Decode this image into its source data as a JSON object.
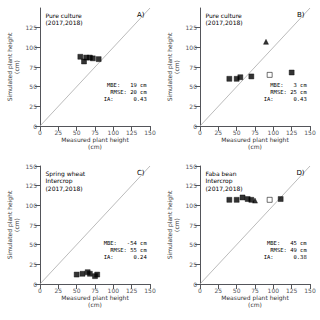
{
  "chart_data": [
    {
      "type": "scatter",
      "title": "Pure culture\n(2017,2018)",
      "annotations": [
        "A)",
        "MBE:   19 cm\nRMSE: 20 cm\nIA:      0.43"
      ],
      "xlabel": "Measured plant height\n(cm)",
      "ylabel": "Simulated plant height\n(cm)",
      "xlim": [
        0,
        150
      ],
      "ylim": [
        0,
        150
      ],
      "xticks": [
        0,
        25,
        50,
        75,
        100,
        125,
        150
      ],
      "yticks": [
        0,
        25,
        50,
        75,
        100,
        125
      ],
      "grid": false,
      "series": [
        {
          "type": "line",
          "color": "#aaaaaa",
          "x": [
            0,
            150
          ],
          "values": [
            0,
            150
          ]
        },
        {
          "type": "scatter",
          "marker": "square",
          "color": "black",
          "x": [
            55,
            60,
            63,
            68,
            72,
            80
          ],
          "values": [
            88,
            82,
            87,
            87,
            86,
            85
          ]
        }
      ]
    },
    {
      "type": "scatter",
      "title": "Pure culture\n(2017,2018)",
      "annotations": [
        "B)",
        "MBE:   3 cm\nRMSE: 25 cm\nIA:      0.43"
      ],
      "xlabel": "Measured plant height\n(cm)",
      "ylabel": "Simulated plant height\n(cm)",
      "xlim": [
        0,
        150
      ],
      "ylim": [
        0,
        150
      ],
      "xticks": [
        0,
        25,
        50,
        75,
        100,
        125,
        150
      ],
      "yticks": [
        0,
        25,
        50,
        75,
        100,
        125
      ],
      "grid": false,
      "series": [
        {
          "type": "line",
          "color": "#aaaaaa",
          "x": [
            0,
            150
          ],
          "values": [
            0,
            150
          ]
        },
        {
          "type": "scatter",
          "marker": "square",
          "color": "black",
          "x": [
            40,
            50,
            55,
            70,
            125
          ],
          "values": [
            60,
            60,
            62,
            63,
            68
          ]
        },
        {
          "type": "scatter",
          "marker": "open_square",
          "color": "black",
          "x": [
            95
          ],
          "values": [
            65
          ]
        },
        {
          "type": "scatter",
          "marker": "triangle",
          "color": "black",
          "x": [
            90
          ],
          "values": [
            107
          ]
        }
      ]
    },
    {
      "type": "scatter",
      "title": "Spring wheat\nIntercrop\n(2017,2018)",
      "annotations": [
        "C)",
        "MBE:   -54 cm\nRMSE: 55 cm\nIA:      0.24"
      ],
      "xlabel": "Measured plant height\n(cm)",
      "ylabel": "Simulated plant height\n(cm)",
      "xlim": [
        0,
        150
      ],
      "ylim": [
        0,
        150
      ],
      "xticks": [
        0,
        25,
        50,
        75,
        100,
        125,
        150
      ],
      "yticks": [
        0,
        25,
        50,
        75,
        100,
        125,
        150
      ],
      "grid": false,
      "series": [
        {
          "type": "line",
          "color": "#aaaaaa",
          "x": [
            0,
            150
          ],
          "values": [
            0,
            150
          ]
        },
        {
          "type": "scatter",
          "marker": "square",
          "color": "black",
          "x": [
            50,
            58,
            65,
            68,
            75,
            78
          ],
          "values": [
            12,
            13,
            15,
            13,
            10,
            12
          ]
        }
      ]
    },
    {
      "type": "scatter",
      "title": "Faba bean\nIntercrop\n(2017,2018)",
      "annotations": [
        "D)",
        "MBE:   45 cm\nRMSE: 49 cm\nIA:      0.38"
      ],
      "xlabel": "Measured plant height\n(cm)",
      "ylabel": "Simulated plant height\n(cm)",
      "xlim": [
        0,
        150
      ],
      "ylim": [
        0,
        150
      ],
      "xticks": [
        0,
        25,
        50,
        75,
        100,
        125,
        150
      ],
      "yticks": [
        0,
        25,
        50,
        75,
        100,
        125,
        150
      ],
      "grid": false,
      "series": [
        {
          "type": "line",
          "color": "#aaaaaa",
          "x": [
            0,
            150
          ],
          "values": [
            0,
            150
          ]
        },
        {
          "type": "scatter",
          "marker": "square",
          "color": "black",
          "x": [
            40,
            50,
            58,
            65,
            70,
            110
          ],
          "values": [
            107,
            107,
            110,
            108,
            107,
            108
          ]
        },
        {
          "type": "scatter",
          "marker": "open_square",
          "color": "black",
          "x": [
            95
          ],
          "values": [
            107
          ]
        },
        {
          "type": "scatter",
          "marker": "triangle",
          "color": "black",
          "x": [
            75
          ],
          "values": [
            106
          ]
        }
      ]
    }
  ]
}
